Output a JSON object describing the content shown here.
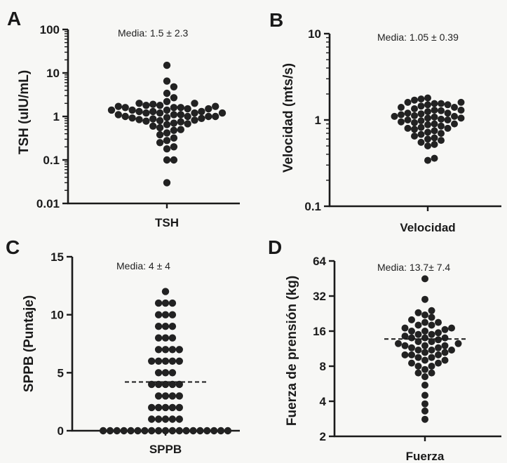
{
  "chart_data": [
    {
      "panel": "A",
      "type": "scatter",
      "ylabel": "TSH (uIU/mL)",
      "category": "TSH",
      "annotation": "Media: 1.5 ± 2.3",
      "yscale": "log",
      "ylim": [
        0.01,
        100
      ],
      "yticks": [
        0.01,
        0.1,
        1,
        10,
        100
      ],
      "ytick_labels": [
        "0.01",
        "0.1",
        "1",
        "10",
        "100"
      ],
      "values": [
        15,
        6.5,
        4.8,
        3.4,
        2.7,
        2.2,
        2.0,
        2.0,
        1.9,
        1.8,
        1.8,
        1.7,
        1.7,
        1.6,
        1.6,
        1.6,
        1.5,
        1.5,
        1.4,
        1.4,
        1.4,
        1.3,
        1.3,
        1.3,
        1.2,
        1.2,
        1.2,
        1.2,
        1.1,
        1.1,
        1.1,
        1.0,
        1.0,
        1.0,
        1.0,
        0.95,
        0.92,
        0.9,
        0.88,
        0.85,
        0.82,
        0.8,
        0.78,
        0.75,
        0.7,
        0.68,
        0.65,
        0.6,
        0.55,
        0.5,
        0.48,
        0.42,
        0.38,
        0.32,
        0.28,
        0.25,
        0.2,
        0.18,
        0.1,
        0.1,
        0.03
      ]
    },
    {
      "panel": "B",
      "type": "scatter",
      "ylabel": "Velocidad (mts/s)",
      "category": "Velocidad",
      "annotation": "Media: 1.05 ± 0.39",
      "yscale": "log",
      "ylim": [
        0.1,
        10
      ],
      "yticks": [
        0.1,
        1,
        10
      ],
      "ytick_labels": [
        "0.1",
        "1",
        "10"
      ],
      "values": [
        1.8,
        1.75,
        1.7,
        1.6,
        1.6,
        1.55,
        1.55,
        1.5,
        1.5,
        1.45,
        1.4,
        1.4,
        1.35,
        1.3,
        1.3,
        1.28,
        1.25,
        1.2,
        1.2,
        1.18,
        1.15,
        1.12,
        1.1,
        1.1,
        1.08,
        1.05,
        1.05,
        1.02,
        1.0,
        1.0,
        0.98,
        0.95,
        0.93,
        0.9,
        0.9,
        0.88,
        0.85,
        0.82,
        0.8,
        0.8,
        0.78,
        0.75,
        0.72,
        0.7,
        0.68,
        0.65,
        0.62,
        0.6,
        0.58,
        0.55,
        0.52,
        0.5,
        0.36,
        0.34
      ]
    },
    {
      "panel": "C",
      "type": "scatter",
      "ylabel": "SPPB (Puntaje)",
      "category": "SPPB",
      "annotation": "Media: 4 ± 4",
      "yscale": "linear",
      "ylim": [
        0,
        15
      ],
      "yticks": [
        0,
        5,
        10,
        15
      ],
      "ytick_labels": [
        "0",
        "5",
        "10",
        "15"
      ],
      "mean_line": 4.2,
      "values": [
        12,
        11,
        11,
        11,
        10,
        10,
        10,
        9,
        9,
        9,
        8,
        8,
        8,
        7,
        7,
        7,
        7,
        6,
        6,
        6,
        6,
        6,
        5,
        5,
        5,
        4,
        4,
        4,
        4,
        4,
        3,
        3,
        3,
        3,
        2,
        2,
        2,
        2,
        2,
        1,
        1,
        1,
        1,
        1,
        0,
        0,
        0,
        0,
        0,
        0,
        0,
        0,
        0,
        0,
        0,
        0,
        0,
        0,
        0,
        0,
        0,
        0,
        0
      ]
    },
    {
      "panel": "D",
      "type": "scatter",
      "ylabel": "Fuerza de prensión (kg)",
      "category": "Fuerza",
      "annotation": "Media: 13.7± 7.4",
      "yscale": "log2",
      "ylim": [
        2,
        64
      ],
      "yticks": [
        2,
        4,
        8,
        16,
        32,
        64
      ],
      "ytick_labels": [
        "2",
        "4",
        "8",
        "16",
        "32",
        "64"
      ],
      "mean_line": 13.7,
      "values": [
        45,
        30,
        24,
        23,
        22,
        21,
        20,
        19,
        19,
        18,
        18,
        17,
        17,
        16.5,
        16,
        16,
        15.5,
        15,
        15,
        14.5,
        14,
        14,
        14,
        13.5,
        13,
        13,
        12.5,
        12.5,
        12,
        12,
        12,
        11.5,
        11.5,
        11,
        11,
        11,
        10.5,
        10.5,
        10,
        10,
        10,
        9.5,
        9.5,
        9,
        9,
        8.5,
        8.5,
        8,
        8,
        7.5,
        7,
        7,
        6.5,
        5.5,
        4.5,
        3.8,
        3.3,
        2.8
      ]
    }
  ]
}
